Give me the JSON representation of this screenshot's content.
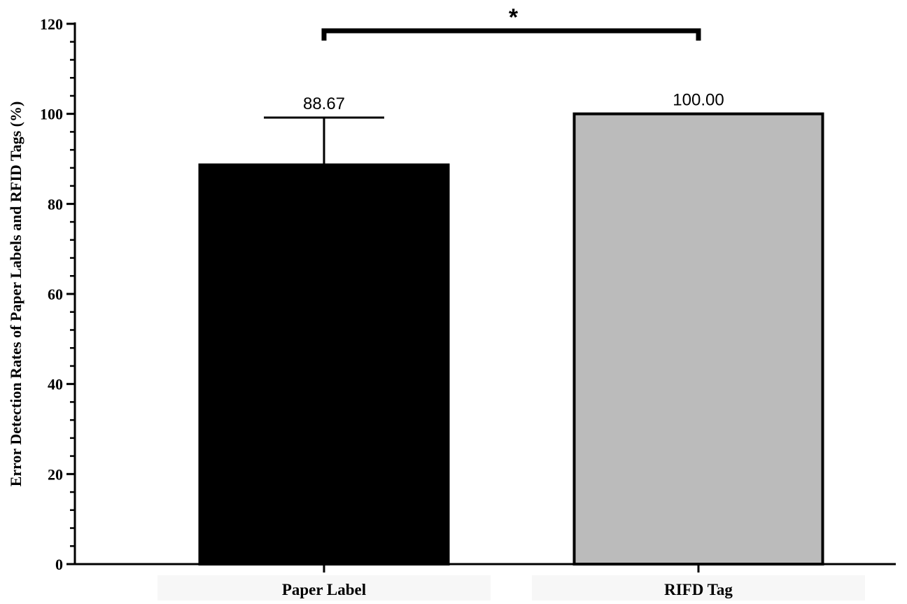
{
  "chart_data": {
    "type": "bar",
    "title": "",
    "xlabel": "",
    "ylabel": "Error Detection Rates of Paper Labels and RFID Tags (%)",
    "ylim": [
      0,
      120
    ],
    "yticks": [
      0,
      20,
      40,
      60,
      80,
      100,
      120
    ],
    "minor_ticks_per_major": 4,
    "grid": false,
    "categories": [
      "Paper Label",
      "RIFD Tag"
    ],
    "values": [
      88.67,
      100.0
    ],
    "data_labels": [
      "88.67",
      "100.00"
    ],
    "error_upper": [
      10.5,
      0
    ],
    "colors": [
      "#000000",
      "#bbbbbb"
    ],
    "edge_color": "#000000",
    "significance": {
      "between": [
        0,
        1
      ],
      "label": "*"
    }
  }
}
